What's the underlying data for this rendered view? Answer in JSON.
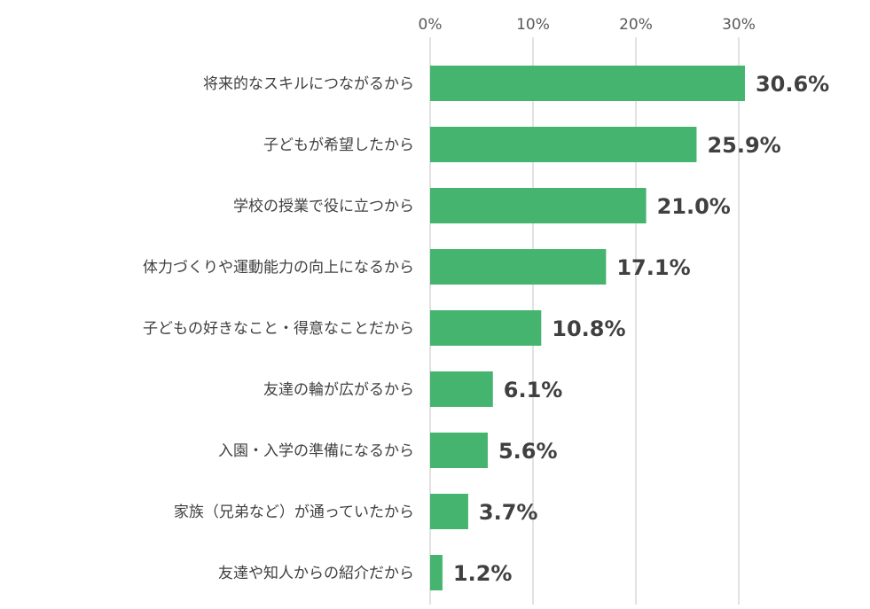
{
  "chart_data": {
    "type": "bar",
    "orientation": "horizontal",
    "title": "",
    "xlabel": "",
    "ylabel": "",
    "categories": [
      "将来的なスキルにつながるから",
      "子どもが希望したから",
      "学校の授業で役に立つから",
      "体力づくりや運動能力の向上になるから",
      "子どもの好きなこと・得意なことだから",
      "友達の輪が広がるから",
      "入園・入学の準備になるから",
      "家族（兄弟など）が通っていたから",
      "友達や知人からの紹介だから"
    ],
    "values": [
      30.6,
      25.9,
      21.0,
      17.1,
      10.8,
      6.1,
      5.6,
      3.7,
      1.2
    ],
    "value_labels": [
      "30.6%",
      "25.9%",
      "21.0%",
      "17.1%",
      "10.8%",
      "6.1%",
      "5.6%",
      "3.7%",
      "1.2%"
    ],
    "xlim": [
      0,
      30
    ],
    "x_ticks": [
      0,
      10,
      20,
      30
    ],
    "x_tick_labels": [
      "0%",
      "10%",
      "20%",
      "30%"
    ],
    "x_axis_position": "top",
    "grid": true,
    "legend": "none",
    "colors": {
      "bar": "#44b46e",
      "grid": "#d9d9d9",
      "text": "#404040",
      "tick": "#595959"
    }
  }
}
